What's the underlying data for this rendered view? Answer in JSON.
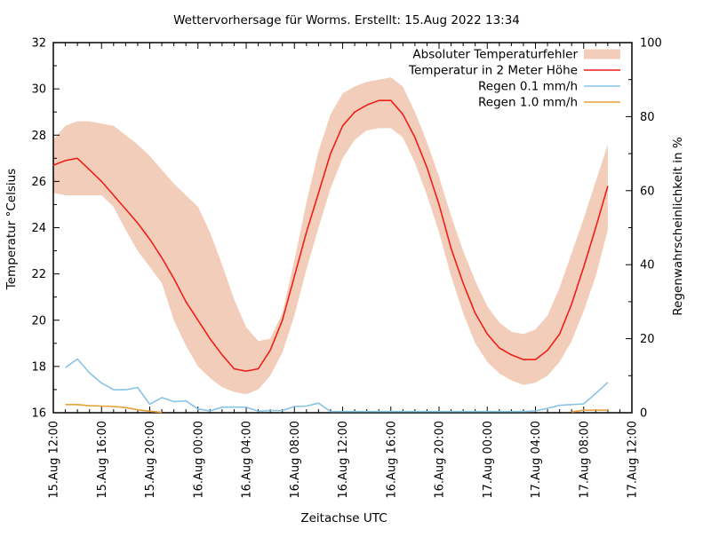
{
  "title": "Wettervorhersage für Worms. Erstellt: 15.Aug 2022 13:34",
  "axes": {
    "y_left": {
      "label": "Temperatur °Celsius",
      "min": 16,
      "max": 32,
      "major_step": 2,
      "minor_step": 1
    },
    "y_right": {
      "label": "Regenwahrscheinlichkeit in %",
      "min": 0,
      "max": 100,
      "major_step": 20,
      "minor_step": 10
    },
    "x": {
      "label": "Zeitachse UTC",
      "total_hours": 48,
      "major_every_hours": 4,
      "minor_every_hours": 1,
      "tick_labels": [
        "15.Aug 12:00",
        "15.Aug 16:00",
        "15.Aug 20:00",
        "16.Aug 00:00",
        "16.Aug 04:00",
        "16.Aug 08:00",
        "16.Aug 12:00",
        "16.Aug 16:00",
        "16.Aug 20:00",
        "17.Aug 00:00",
        "17.Aug 04:00",
        "17.Aug 08:00",
        "17.Aug 12:00"
      ]
    }
  },
  "legend": [
    {
      "label": "Absoluter Temperaturfehler",
      "type": "band",
      "color": "#f2cdb9"
    },
    {
      "label": "Temperatur in 2 Meter Höhe",
      "type": "line",
      "color": "#ef1f18"
    },
    {
      "label": "Regen 0.1 mm/h",
      "type": "line",
      "color": "#87c3e6"
    },
    {
      "label": "Regen 1.0 mm/h",
      "type": "line",
      "color": "#e7a13a"
    }
  ],
  "chart_data": {
    "type": "line",
    "x_unit": "hours since 15.Aug 12:00 UTC",
    "x_hours": [
      0,
      1,
      2,
      3,
      4,
      5,
      6,
      7,
      8,
      9,
      10,
      11,
      12,
      13,
      14,
      15,
      16,
      17,
      18,
      19,
      20,
      21,
      22,
      23,
      24,
      25,
      26,
      27,
      28,
      29,
      30,
      31,
      32,
      33,
      34,
      35,
      36,
      37,
      38,
      39,
      40,
      41,
      42,
      43,
      44,
      45,
      46
    ],
    "ylim_left": [
      16,
      32
    ],
    "ylim_right": [
      0,
      100
    ],
    "grid": false,
    "legend_position": "top-right-inside",
    "series": [
      {
        "name": "Absoluter Temperaturfehler",
        "role": "band",
        "axis": "left",
        "color": "#f2cdb9",
        "upper": [
          27.8,
          28.4,
          28.6,
          28.6,
          28.5,
          28.4,
          28.0,
          27.6,
          27.1,
          26.5,
          25.9,
          25.4,
          24.9,
          23.8,
          22.4,
          20.9,
          19.7,
          19.1,
          19.2,
          20.3,
          22.6,
          25.1,
          27.3,
          28.9,
          29.8,
          30.1,
          30.3,
          30.4,
          30.5,
          30.1,
          29.0,
          27.7,
          26.2,
          24.5,
          23.0,
          21.7,
          20.6,
          19.9,
          19.5,
          19.4,
          19.6,
          20.2,
          21.4,
          22.9,
          24.4,
          26.0,
          27.6
        ],
        "lower": [
          25.5,
          25.4,
          25.4,
          25.4,
          25.4,
          24.9,
          23.9,
          23.0,
          22.3,
          21.6,
          20.0,
          18.9,
          18.0,
          17.5,
          17.1,
          16.9,
          16.8,
          17.0,
          17.6,
          18.6,
          20.2,
          22.2,
          24.0,
          25.7,
          27.0,
          27.8,
          28.2,
          28.3,
          28.3,
          27.9,
          26.8,
          25.4,
          23.8,
          21.9,
          20.3,
          19.0,
          18.2,
          17.7,
          17.4,
          17.2,
          17.3,
          17.6,
          18.2,
          19.1,
          20.4,
          21.9,
          23.9
        ]
      },
      {
        "name": "Temperatur in 2 Meter Höhe",
        "role": "line",
        "axis": "left",
        "color": "#ef1f18",
        "values": [
          26.7,
          26.9,
          27.0,
          26.5,
          26.0,
          25.4,
          24.8,
          24.2,
          23.5,
          22.7,
          21.8,
          20.8,
          20.0,
          19.2,
          18.5,
          17.9,
          17.8,
          17.9,
          18.7,
          20.0,
          21.9,
          23.8,
          25.5,
          27.2,
          28.4,
          29.0,
          29.3,
          29.5,
          29.5,
          28.9,
          27.9,
          26.6,
          25.0,
          23.1,
          21.6,
          20.3,
          19.4,
          18.8,
          18.5,
          18.3,
          18.3,
          18.7,
          19.4,
          20.7,
          22.3,
          24.0,
          25.8
        ]
      },
      {
        "name": "Regen 0.1 mm/h",
        "role": "line",
        "axis": "right",
        "color": "#87c3e6",
        "values": [
          null,
          12.2,
          14.5,
          10.8,
          8.0,
          6.2,
          6.2,
          6.8,
          2.3,
          4.1,
          3.0,
          3.2,
          1.0,
          0.5,
          1.5,
          1.5,
          1.5,
          0.4,
          0.6,
          0.6,
          1.7,
          1.8,
          2.6,
          0.3,
          0.3,
          0.3,
          0.3,
          0.3,
          0.3,
          0.3,
          0.3,
          0.3,
          0.3,
          0.3,
          0.3,
          0.3,
          0.3,
          0.3,
          0.3,
          0.3,
          0.5,
          1.2,
          2.0,
          2.2,
          2.4,
          5.2,
          8.2
        ]
      },
      {
        "name": "Regen 1.0 mm/h",
        "role": "line",
        "axis": "right",
        "color": "#e7a13a",
        "values": [
          null,
          2.2,
          2.2,
          1.9,
          1.8,
          1.7,
          1.4,
          0.8,
          0.4,
          0.1,
          null,
          null,
          null,
          null,
          null,
          null,
          null,
          null,
          null,
          null,
          null,
          null,
          null,
          null,
          null,
          null,
          null,
          null,
          null,
          null,
          null,
          null,
          null,
          null,
          null,
          null,
          null,
          null,
          null,
          null,
          null,
          null,
          null,
          0.2,
          0.7,
          0.7,
          0.7
        ]
      }
    ]
  }
}
